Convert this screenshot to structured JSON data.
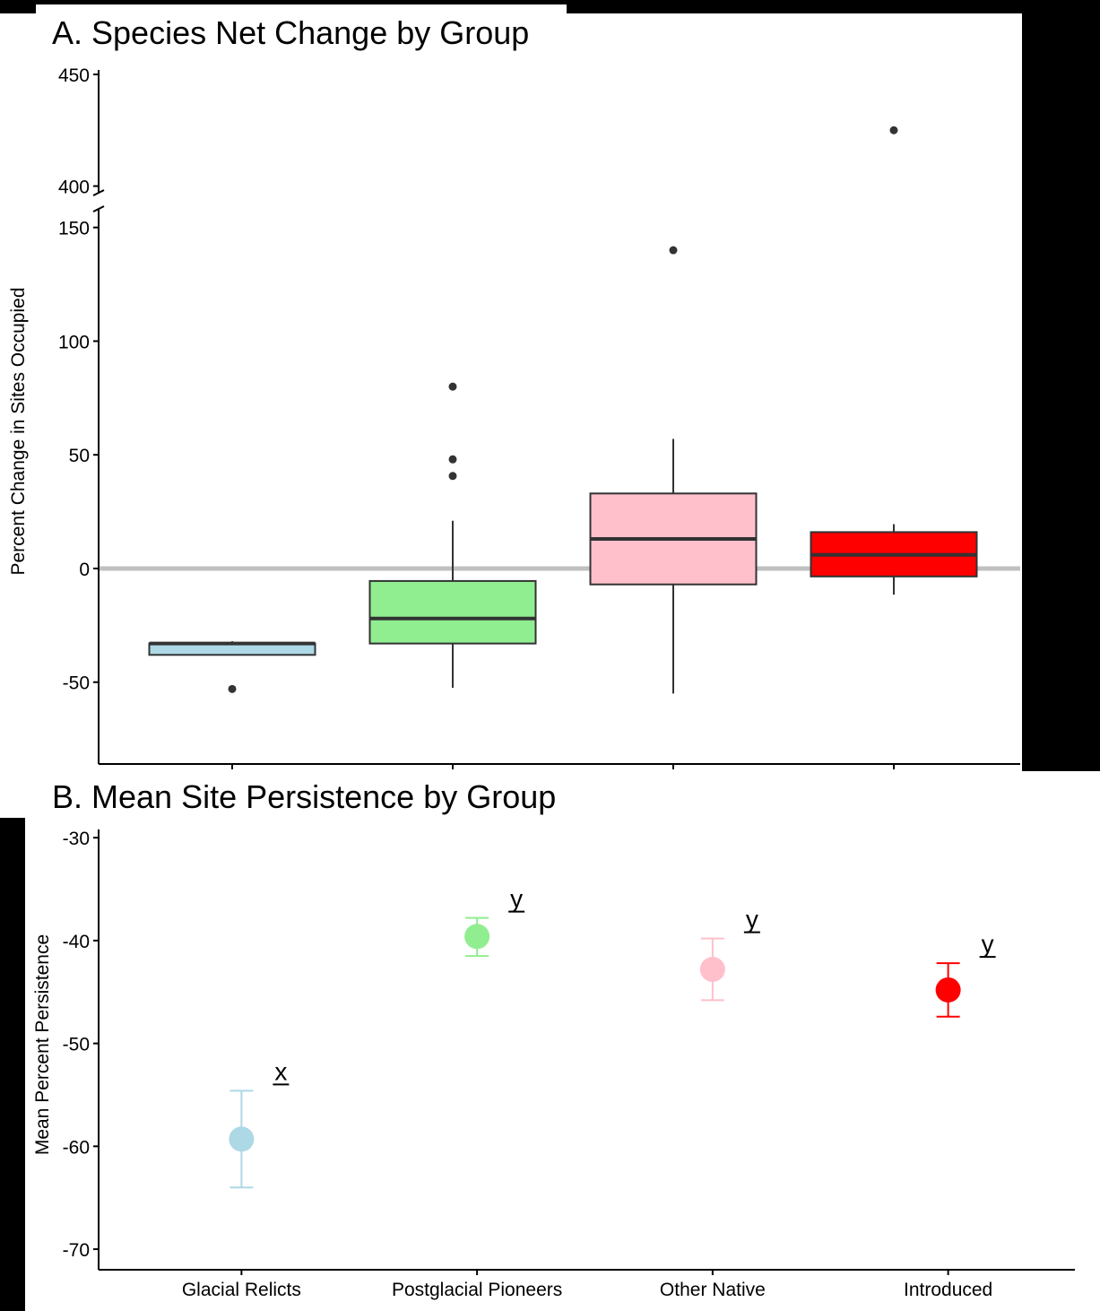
{
  "chart_data": [
    {
      "type": "box",
      "title": "A. Species Net Change by Group",
      "y_label": "Percent Change in Sites Occupied",
      "categories": [
        "Glacial Relicts",
        "Postglacial Pioneers",
        "Other Native",
        "Introduced"
      ],
      "colors": [
        "#add8e6",
        "#90ee90",
        "#ffc0cb",
        "#ff0000"
      ],
      "boxes": [
        {
          "whisker_low": -38,
          "q1": -38,
          "median": -33,
          "q3": -33,
          "whisker_high": -32,
          "outliers": [
            -53
          ]
        },
        {
          "whisker_low": -52.5,
          "q1": -33,
          "median": -22,
          "q3": -5.5,
          "whisker_high": 21,
          "outliers": [
            80,
            48,
            40.7
          ]
        },
        {
          "whisker_low": -55,
          "q1": -7,
          "median": 13,
          "q3": 33,
          "whisker_high": 57,
          "outliers": [
            140
          ]
        },
        {
          "whisker_low": -11.5,
          "q1": -3.5,
          "median": 6,
          "q3": 16,
          "whisker_high": 19.5,
          "outliers": [
            425
          ]
        }
      ],
      "ylim": [
        -86,
        452
      ],
      "axis_break": [
        155,
        397
      ],
      "yticks": [
        -50,
        0,
        50,
        100,
        150,
        400,
        450
      ],
      "hline": 0,
      "hline_color": "#c0c0c0"
    },
    {
      "type": "errorbar",
      "title": "B. Mean Site Persistence by Group",
      "y_label": "Mean Percent Persistence",
      "categories": [
        "Glacial Relicts",
        "Postglacial Pioneers",
        "Other Native",
        "Introduced"
      ],
      "colors": [
        "#add8e6",
        "#90ee90",
        "#ffc0cb",
        "#ff0000"
      ],
      "values": [
        -59.3,
        -39.6,
        -42.8,
        -44.8
      ],
      "upper": [
        -54.6,
        -37.8,
        -39.8,
        -42.2
      ],
      "lower": [
        -64,
        -41.5,
        -45.8,
        -47.4
      ],
      "letters": [
        "x",
        "y",
        "y",
        "y"
      ],
      "ylim": [
        -72,
        -29.2
      ],
      "yticks": [
        -30,
        -40,
        -50,
        -60,
        -70
      ]
    }
  ]
}
